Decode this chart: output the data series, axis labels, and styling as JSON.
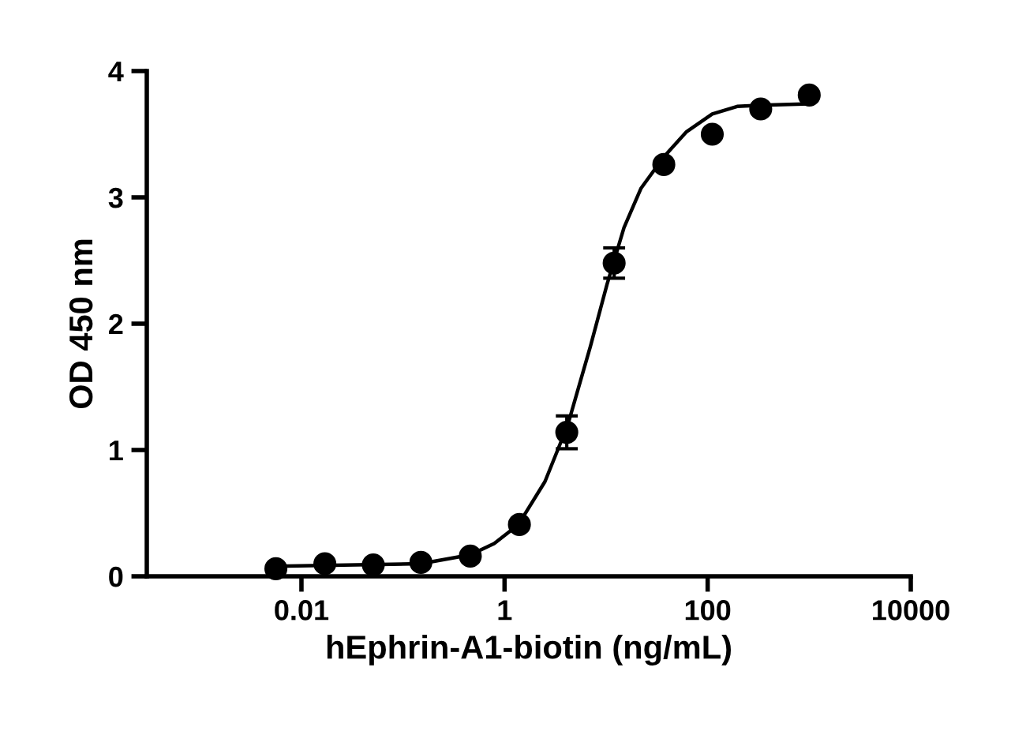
{
  "chart_data": {
    "type": "scatter",
    "xlabel": "hEphrin-A1-biotin (ng/mL)",
    "ylabel": "OD 450 nm",
    "log": "x",
    "xlim": [
      0.0003,
      10000
    ],
    "xticks": [
      0.01,
      1,
      100,
      10000
    ],
    "ylim": [
      0,
      4
    ],
    "yticks": [
      0,
      1,
      2,
      3,
      4
    ],
    "grid": false,
    "marker": "circle",
    "series": [
      {
        "color": "#000000",
        "x": [
          0.0056,
          0.017,
          0.051,
          0.15,
          0.46,
          1.4,
          4.1,
          12,
          37,
          111,
          333,
          1000
        ],
        "values": [
          0.06,
          0.1,
          0.09,
          0.11,
          0.16,
          0.41,
          1.14,
          2.48,
          3.26,
          3.5,
          3.7,
          3.81
        ],
        "errors": [
          null,
          null,
          null,
          null,
          null,
          null,
          0.13,
          0.12,
          null,
          null,
          null,
          null
        ]
      },
      {
        "type": "line",
        "color": "#000000",
        "marker": "none",
        "x": [
          0.0056,
          0.15,
          0.46,
          0.79,
          1.37,
          2.5,
          4.2,
          7.0,
          10.2,
          15,
          22,
          37,
          62,
          111,
          195,
          340,
          1000
        ],
        "values": [
          0.08,
          0.1,
          0.17,
          0.26,
          0.41,
          0.75,
          1.2,
          1.82,
          2.31,
          2.76,
          3.07,
          3.32,
          3.52,
          3.66,
          3.72,
          3.73,
          3.74
        ]
      }
    ]
  }
}
